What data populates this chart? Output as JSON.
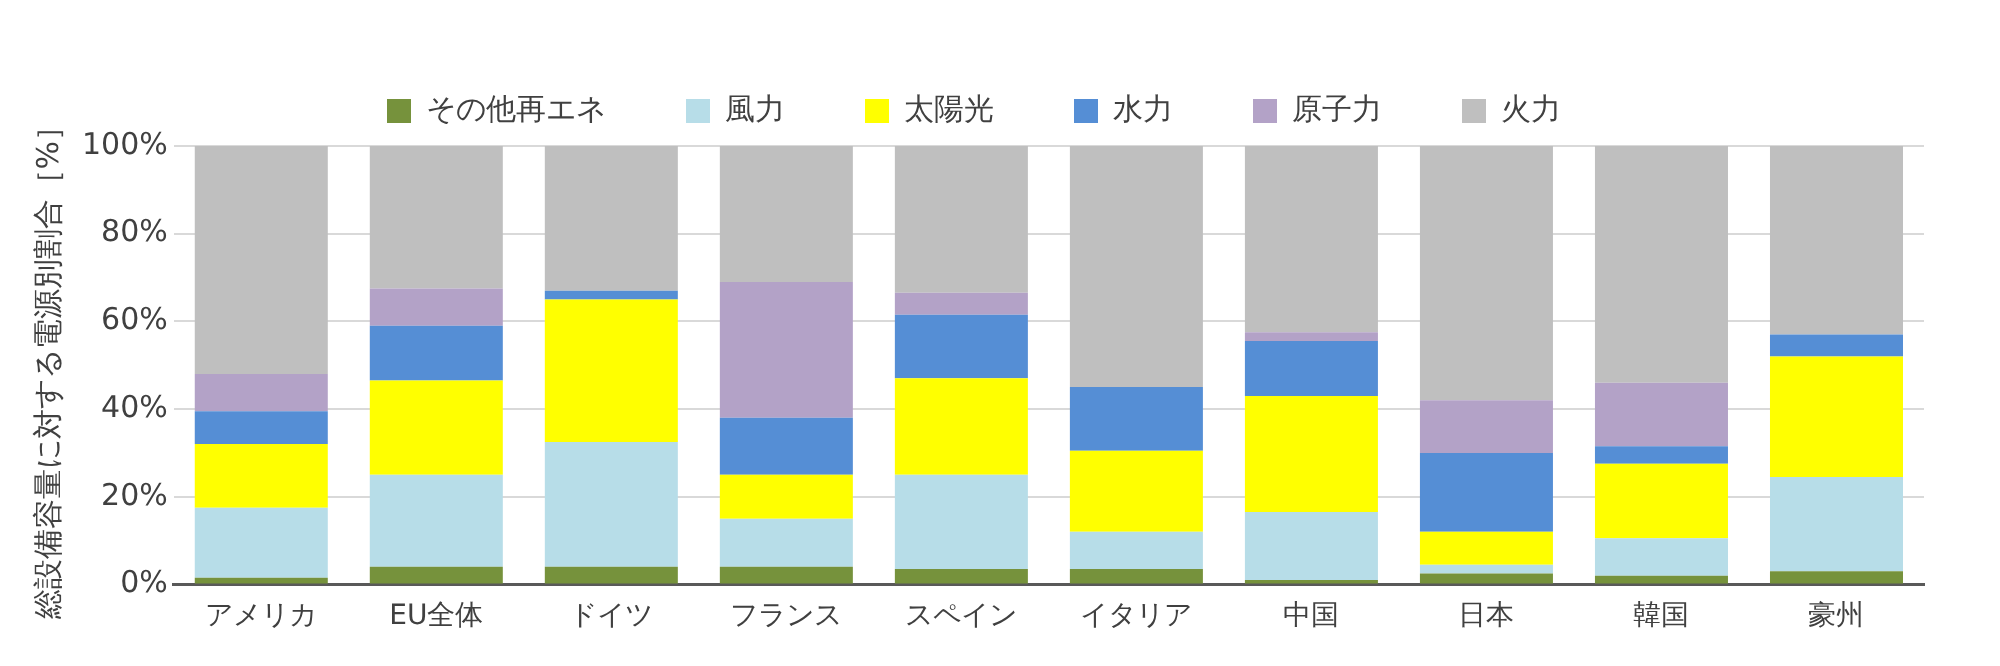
{
  "chart_data": {
    "type": "bar",
    "stacked": true,
    "ylabel": "総設備容量に対する電源別割合［%］",
    "categories": [
      "アメリカ",
      "EU全体",
      "ドイツ",
      "フランス",
      "スペイン",
      "イタリア",
      "中国",
      "日本",
      "韓国",
      "豪州"
    ],
    "series": [
      {
        "name": "その他再エネ",
        "color": "#76923c",
        "values": [
          1.5,
          4,
          4,
          4,
          3.5,
          3.5,
          1,
          2.5,
          2,
          3
        ]
      },
      {
        "name": "風力",
        "color": "#b7dde8",
        "values": [
          16,
          21,
          28.5,
          11,
          21.5,
          8.5,
          15.5,
          2,
          8.5,
          21.5
        ]
      },
      {
        "name": "太陽光",
        "color": "#ffff00",
        "values": [
          14.5,
          21.5,
          32.5,
          10,
          22,
          18.5,
          26.5,
          7.5,
          17,
          27.5
        ]
      },
      {
        "name": "水力",
        "color": "#558ed5",
        "values": [
          7.5,
          12.5,
          2,
          13,
          14.5,
          14.5,
          12.5,
          18,
          4,
          5
        ]
      },
      {
        "name": "原子力",
        "color": "#b3a2c7",
        "values": [
          8.5,
          8.5,
          0,
          31,
          5,
          0,
          2,
          12,
          14.5,
          0
        ]
      },
      {
        "name": "火力",
        "color": "#bfbfbf",
        "values": [
          52,
          32.5,
          33,
          31,
          33.5,
          55,
          42.5,
          58,
          54,
          43
        ]
      }
    ],
    "ylim": [
      0,
      100
    ],
    "yticks": [
      {
        "value": 0,
        "label": "0%"
      },
      {
        "value": 20,
        "label": "20%"
      },
      {
        "value": 40,
        "label": "40%"
      },
      {
        "value": 60,
        "label": "60%"
      },
      {
        "value": 80,
        "label": "80%"
      },
      {
        "value": 100,
        "label": "100%"
      }
    ],
    "grid": "y",
    "legend": "top"
  }
}
